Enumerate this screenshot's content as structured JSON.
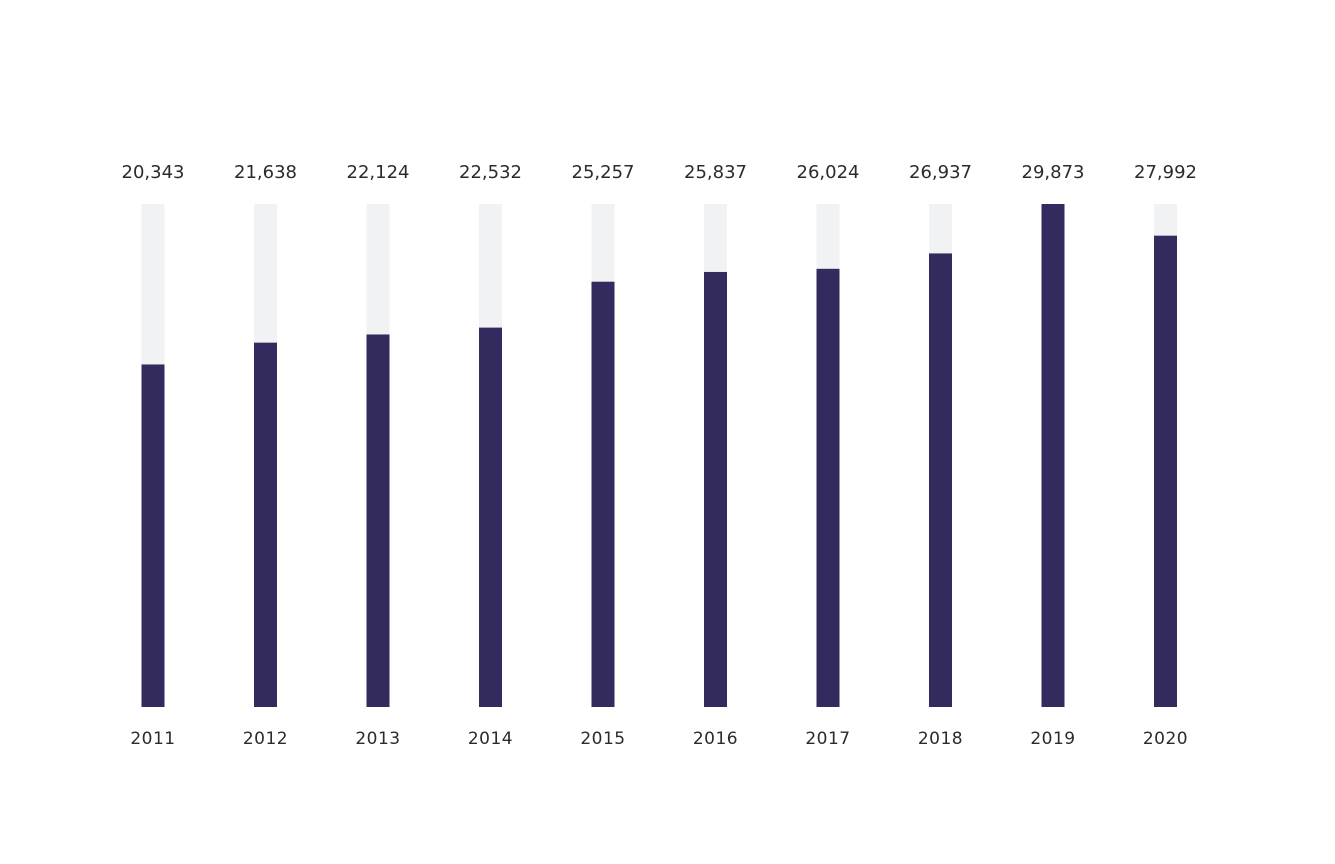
{
  "chart_data": {
    "type": "bar",
    "categories": [
      "2011",
      "2012",
      "2013",
      "2014",
      "2015",
      "2016",
      "2017",
      "2018",
      "2019",
      "2020"
    ],
    "values": [
      20343,
      21638,
      22124,
      22532,
      25257,
      25837,
      26024,
      26937,
      29873,
      27992
    ],
    "value_labels": [
      "20,343",
      "21,638",
      "22,124",
      "22,532",
      "25,257",
      "25,837",
      "26,024",
      "26,937",
      "29,873",
      "27,992"
    ],
    "ylim": [
      0,
      29873
    ],
    "grid": false,
    "legend": "none"
  },
  "colors": {
    "bar": "#332a5e",
    "track": "#f1f2f4",
    "text": "#2b2b2b",
    "background": "#ffffff"
  }
}
